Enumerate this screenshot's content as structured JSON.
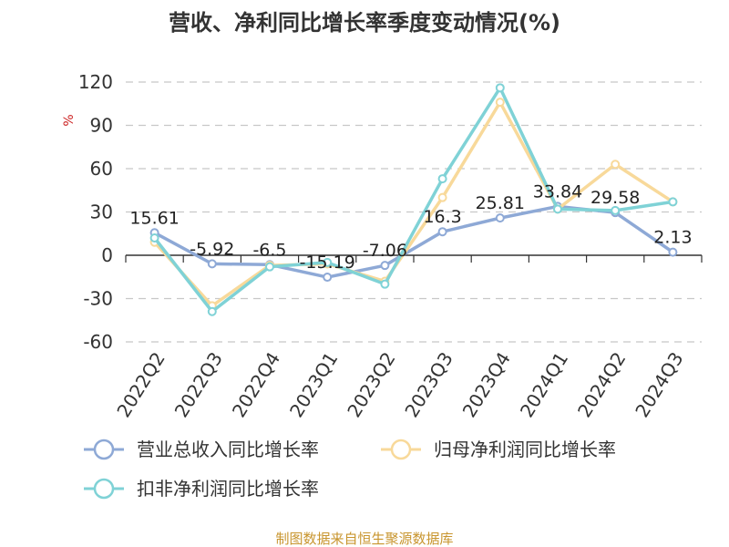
{
  "chart_data": {
    "type": "line",
    "title": "营收、净利同比增长率季度变动情况(%)",
    "ylabel": "%",
    "ylim": [
      -60,
      120
    ],
    "yticks": [
      -60,
      -30,
      0,
      30,
      60,
      90,
      120
    ],
    "grid": true,
    "legend_position": "bottom-left",
    "categories": [
      "2022Q2",
      "2022Q3",
      "2022Q4",
      "2023Q1",
      "2023Q2",
      "2023Q3",
      "2023Q4",
      "2024Q1",
      "2024Q2",
      "2024Q3"
    ],
    "series": [
      {
        "name": "营业总收入同比增长率",
        "color": "#8ea9d6",
        "values": [
          15.61,
          -5.92,
          -6.5,
          -15.19,
          -7.06,
          16.3,
          25.81,
          33.84,
          29.58,
          2.13
        ],
        "labels": [
          "15.61",
          "-5.92",
          "-6.5",
          "-15.19",
          "-7.06",
          "16.3",
          "25.81",
          "33.84",
          "29.58",
          "2.13"
        ]
      },
      {
        "name": "归母净利润同比增长率",
        "color": "#f8d99a",
        "values": [
          9,
          -35,
          -7,
          -6,
          -18,
          40,
          106,
          32,
          63,
          37
        ]
      },
      {
        "name": "扣非净利润同比增长率",
        "color": "#7fd2d6",
        "values": [
          12,
          -39,
          -8,
          -5,
          -20,
          53,
          116,
          32,
          31,
          37
        ]
      }
    ]
  },
  "footer": "制图数据来自恒生聚源数据库"
}
